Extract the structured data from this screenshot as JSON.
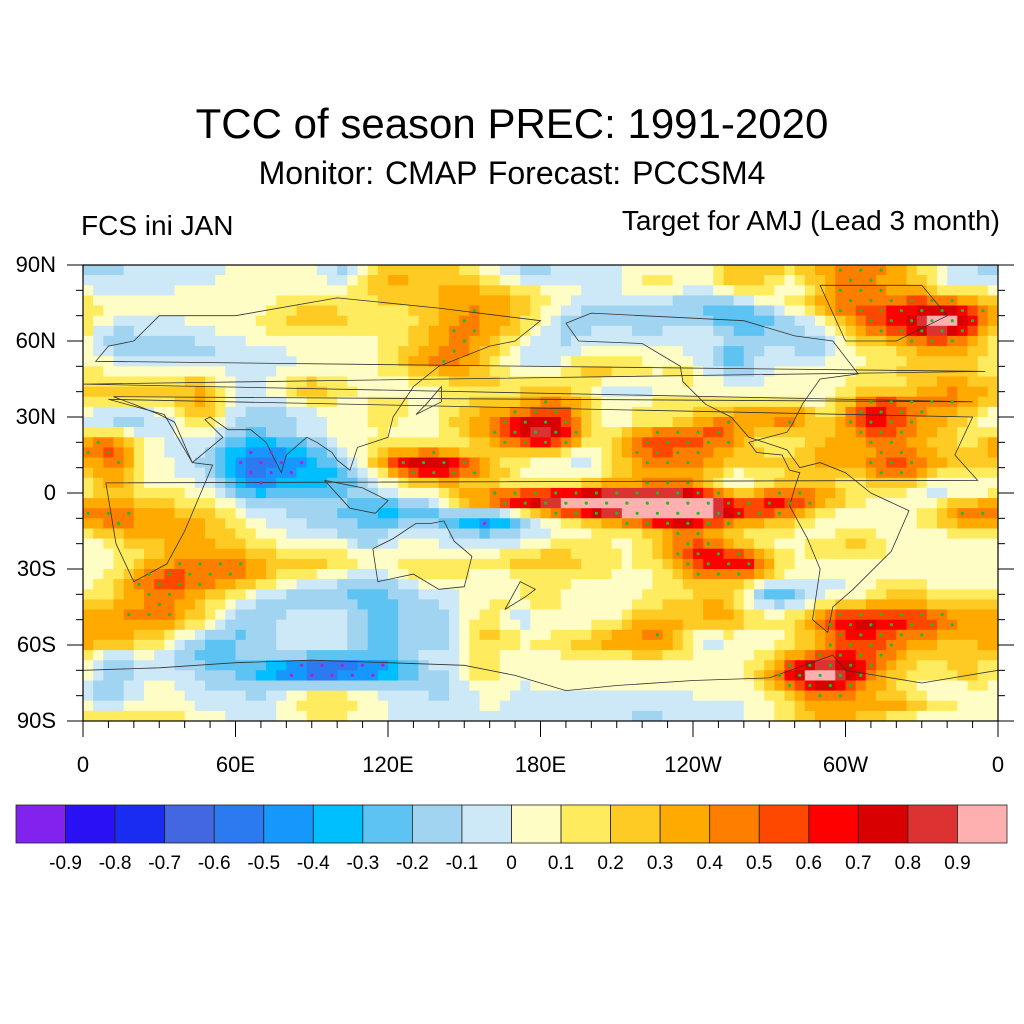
{
  "header": {
    "title": "TCC of season PREC: 1991-2020",
    "subtitle": "Monitor: CMAP   Forecast: PCCSM4",
    "left_label": "FCS ini JAN",
    "right_label": "Target for AMJ (Lead 3 month)"
  },
  "chart_data": {
    "type": "heatmap",
    "title": "TCC of season PREC: 1991-2020",
    "subtitle": "Monitor: CMAP   Forecast: PCCSM4",
    "left_annotation": "FCS ini JAN",
    "right_annotation": "Target for AMJ (Lead 3 month)",
    "projection": "cylindrical equidistant global map, longitude 0 to 360",
    "xlabel": "",
    "ylabel": "",
    "x_ticks": [
      "0",
      "60E",
      "120E",
      "180E",
      "120W",
      "60W",
      "0"
    ],
    "x_tick_values": [
      0,
      60,
      120,
      180,
      240,
      300,
      360
    ],
    "y_ticks": [
      "90N",
      "60N",
      "30N",
      "0",
      "30S",
      "60S",
      "90S"
    ],
    "y_tick_values": [
      90,
      60,
      30,
      0,
      -30,
      -60,
      -90
    ],
    "xlim": [
      0,
      360
    ],
    "ylim": [
      -90,
      90
    ],
    "colorbar": {
      "orientation": "horizontal",
      "placement": "bottom",
      "levels": [
        "-0.9",
        "-0.8",
        "-0.7",
        "-0.6",
        "-0.5",
        "-0.4",
        "-0.3",
        "-0.2",
        "-0.1",
        "0",
        "0.1",
        "0.2",
        "0.3",
        "0.4",
        "0.5",
        "0.6",
        "0.7",
        "0.8",
        "0.9"
      ],
      "colors": [
        "#8122ee",
        "#2a11f5",
        "#1a2bf2",
        "#4267e0",
        "#2b7af0",
        "#1597fb",
        "#00bffe",
        "#5cc3f2",
        "#a1d4f0",
        "#cde8f6",
        "#fefdc6",
        "#feec5e",
        "#fecb25",
        "#feaa00",
        "#fe7f00",
        "#fe4800",
        "#fe0000",
        "#d80000",
        "#dc3232",
        "#feb0b0"
      ]
    },
    "significance_markers": {
      "positive": "#22bb22",
      "negative": "#aa22dd"
    },
    "features": [
      {
        "region": "Central-East Equatorial Pacific (~160W-100W, 0-5S)",
        "value_range": "0.6-0.8"
      },
      {
        "region": "Western North Pacific (~125E-150E, 10N)",
        "value_range": "0.5-0.7"
      },
      {
        "region": "Subtropical NW Pacific (~170E-180, 20-30N)",
        "value_range": "0.5-0.7"
      },
      {
        "region": "SE Pacific (~140W-100W, 10-20S)",
        "value_range": "0.5-0.7"
      },
      {
        "region": "Maritime Continent / Indonesia (~110E-140E, 0-10S)",
        "value_range": "-0.3 to -0.5"
      },
      {
        "region": "Antarctic coast (~80E-110E, 70S)",
        "value_range": "-0.5 to -0.7"
      },
      {
        "region": "Equatorial Atlantic (~0-30W, 0-10S)",
        "value_range": "0.4-0.6"
      }
    ]
  }
}
